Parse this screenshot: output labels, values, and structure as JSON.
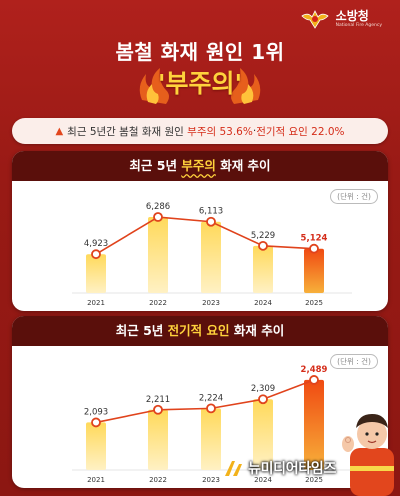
{
  "logo": {
    "name": "소방청",
    "sub": "National Fire Agency"
  },
  "header": {
    "title": "봄철 화재 원인 1위",
    "highlight": "'부주의'"
  },
  "summary": {
    "prefix": "최근 5년간 봄철 화재 원인",
    "cause1": "부주의 53.6%",
    "sep": " · ",
    "cause2": "전기적 요인 22.0%"
  },
  "colors": {
    "bar_light": "#f9c73c",
    "bar_dark_top": "#f04a12",
    "line": "#e0431c",
    "header_bg": "#5a0f0b"
  },
  "chart_data": [
    {
      "type": "bar",
      "title_pre": "최근 5년 ",
      "title_hl": "부주의",
      "title_post": " 화재 추이",
      "unit": "(단위 : 건)",
      "categories": [
        "2021",
        "2022",
        "2023",
        "2024",
        "2025"
      ],
      "values": [
        4923,
        6286,
        6113,
        5229,
        5124
      ],
      "labels": [
        "4,923",
        "6,286",
        "6,113",
        "5,229",
        "5,124"
      ],
      "ylim": [
        3500,
        6800
      ],
      "grid": false,
      "overlay_line": true
    },
    {
      "type": "bar",
      "title_pre": "최근 5년 ",
      "title_hl": "전기적 요인",
      "title_post": " 화재 추이",
      "unit": "(단위 : 건)",
      "categories": [
        "2021",
        "2022",
        "2023",
        "2024",
        "2025"
      ],
      "values": [
        2093,
        2211,
        2224,
        2309,
        2489
      ],
      "labels": [
        "2,093",
        "2,211",
        "2,224",
        "2,309",
        "2,489"
      ],
      "ylim": [
        1650,
        2600
      ],
      "grid": false,
      "overlay_line": true
    }
  ],
  "footer": {
    "brand": "뉴미디어타임즈"
  }
}
